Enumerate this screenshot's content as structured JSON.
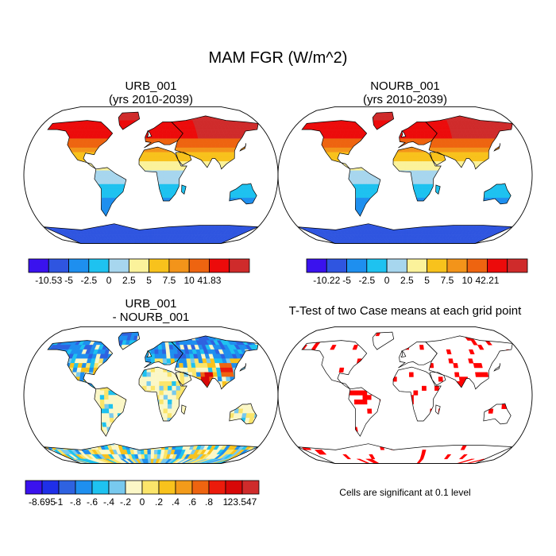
{
  "figure_title": "MAM FGR (W/m^2)",
  "panels": [
    {
      "id": "urb",
      "title_line1": "URB_001",
      "title_line2": "(yrs 2010-2039)",
      "map_style": "field"
    },
    {
      "id": "nourb",
      "title_line1": "NOURB_001",
      "title_line2": "(yrs 2010-2039)",
      "map_style": "field"
    },
    {
      "id": "diff",
      "title_line1": "URB_001",
      "title_line2": "- NOURB_001",
      "map_style": "difference"
    },
    {
      "id": "ttest",
      "title_line1": "T-Test of two Case means at each grid point",
      "title_line2": "",
      "map_style": "significance"
    }
  ],
  "colorbars": [
    {
      "id": "urb",
      "colors": [
        "#3a12ee",
        "#2f55e0",
        "#1e8fef",
        "#1ec2f0",
        "#a7d6ee",
        "#fbf29b",
        "#f8c21c",
        "#f3941a",
        "#ee6410",
        "#ec0b0b",
        "#cf2b2b"
      ],
      "labels": [
        "-10.53",
        "-5",
        "-2.5",
        "0",
        "2.5",
        "5",
        "7.5",
        "10",
        "41.83"
      ]
    },
    {
      "id": "nourb",
      "colors": [
        "#3a12ee",
        "#2f55e0",
        "#1e8fef",
        "#1ec2f0",
        "#a7d6ee",
        "#fbf29b",
        "#f8c21c",
        "#f3941a",
        "#ee6410",
        "#ec0b0b",
        "#cf2b2b"
      ],
      "labels": [
        "-10.22",
        "-5",
        "-2.5",
        "0",
        "2.5",
        "5",
        "7.5",
        "10",
        "42.21"
      ]
    },
    {
      "id": "diff",
      "colors": [
        "#3a12ee",
        "#1f2fe8",
        "#2e62e0",
        "#1e8fef",
        "#1ec2f0",
        "#78c9ee",
        "#fbf7c7",
        "#fbe56a",
        "#f8c21c",
        "#f39b1a",
        "#ee6410",
        "#ec1b0b",
        "#d80808",
        "#cf2b2b"
      ],
      "labels": [
        "-8.695",
        "-1",
        "-.8",
        "-.6",
        "-.4",
        "-.2",
        "0",
        ".2",
        ".4",
        ".6",
        ".8",
        "1",
        "23.547"
      ]
    }
  ],
  "significance_note": "Cells are significant at 0.1 level"
}
